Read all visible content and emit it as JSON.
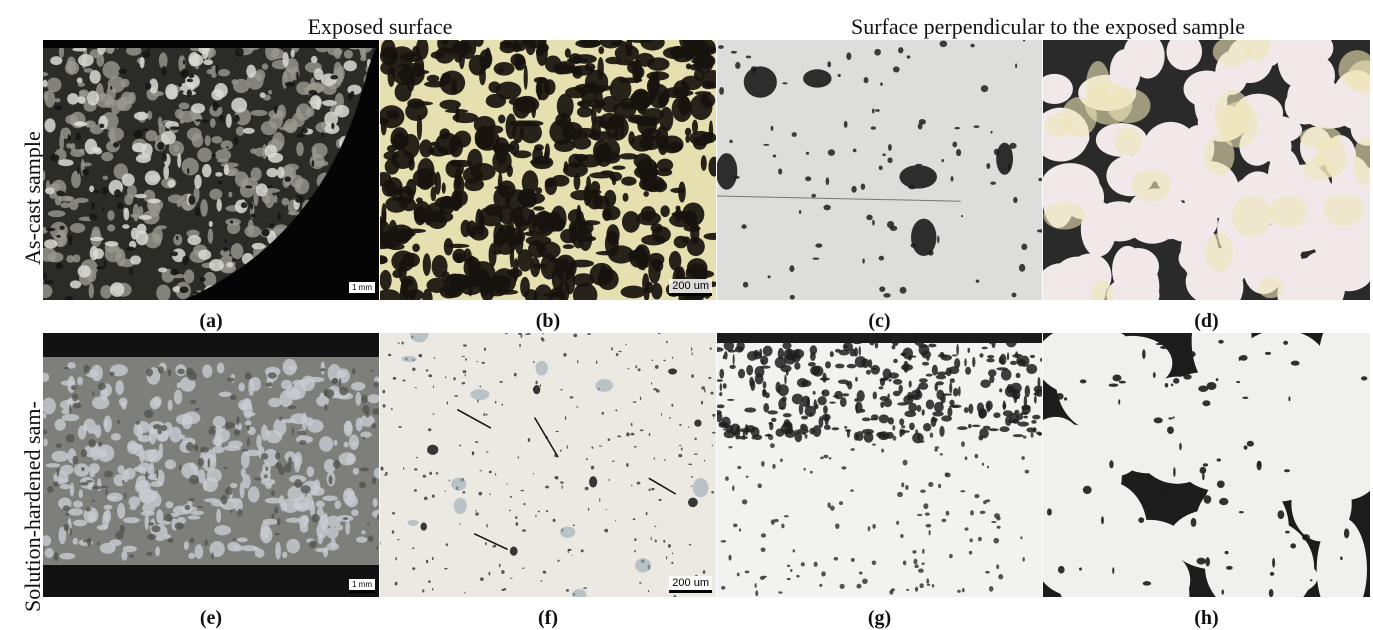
{
  "header": {
    "columns": [
      "Exposed surface",
      "Surface perpendicular to the exposed sample"
    ]
  },
  "rows": [
    "As-cast sample",
    "Solution-hardened sam-"
  ],
  "panels": [
    {
      "label": "(a)",
      "scale": "1 mm"
    },
    {
      "label": "(b)",
      "scale": "200 um"
    },
    {
      "label": "(c)"
    },
    {
      "label": "(d)"
    },
    {
      "label": "(e)",
      "scale": "1 mm"
    },
    {
      "label": "(f)",
      "scale": "200 um"
    },
    {
      "label": "(g)"
    },
    {
      "label": "(h)"
    }
  ]
}
